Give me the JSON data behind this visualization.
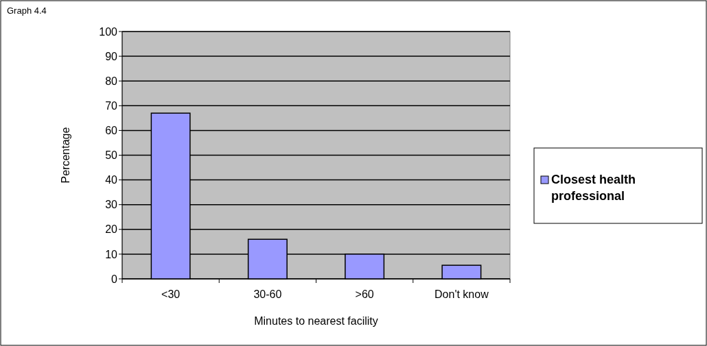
{
  "chart_data": {
    "type": "bar",
    "title": "Graph 4.4",
    "xlabel": "Minutes to nearest facility",
    "ylabel": "Percentage",
    "categories": [
      "<30",
      "30-60",
      ">60",
      "Don't know"
    ],
    "series": [
      {
        "name": "Closest health professional",
        "color": "#9999ff",
        "values": [
          67,
          16,
          10,
          5.5
        ]
      }
    ],
    "ylim": [
      0,
      100
    ],
    "yticks": [
      0,
      10,
      20,
      30,
      40,
      50,
      60,
      70,
      80,
      90,
      100
    ],
    "grid": "y",
    "legend": "right"
  }
}
